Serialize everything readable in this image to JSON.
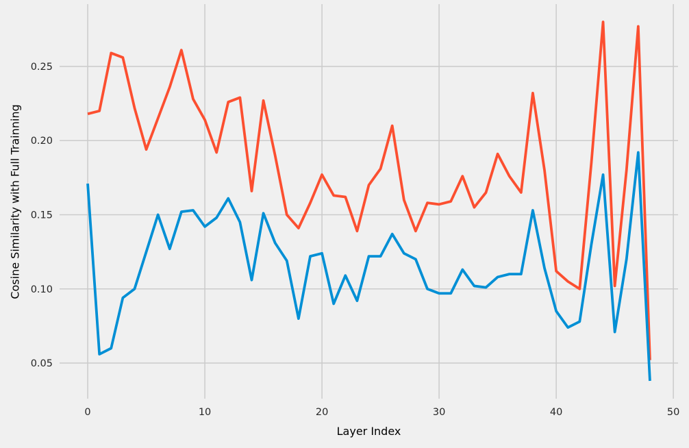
{
  "chart_data": {
    "type": "line",
    "title": "",
    "xlabel": "Layer Index",
    "ylabel": "Cosine Similarity with Full Trainning",
    "x": [
      0,
      1,
      2,
      3,
      4,
      5,
      6,
      7,
      8,
      9,
      10,
      11,
      12,
      13,
      14,
      15,
      16,
      17,
      18,
      19,
      20,
      21,
      22,
      23,
      24,
      25,
      26,
      27,
      28,
      29,
      30,
      31,
      32,
      33,
      34,
      35,
      36,
      37,
      38,
      39,
      40,
      41,
      42,
      43,
      44,
      45,
      46,
      47,
      48
    ],
    "series": [
      {
        "name": "red-series",
        "color": "#fc4f30",
        "values": [
          0.218,
          0.22,
          0.259,
          0.256,
          0.222,
          0.194,
          0.215,
          0.236,
          0.261,
          0.228,
          0.214,
          0.192,
          0.226,
          0.229,
          0.166,
          0.227,
          0.19,
          0.15,
          0.141,
          0.158,
          0.177,
          0.163,
          0.162,
          0.139,
          0.17,
          0.181,
          0.21,
          0.16,
          0.139,
          0.158,
          0.157,
          0.159,
          0.176,
          0.155,
          0.165,
          0.191,
          0.176,
          0.165,
          0.232,
          0.18,
          0.112,
          0.105,
          0.1,
          0.185,
          0.28,
          0.102,
          0.18,
          0.277,
          0.052
        ]
      },
      {
        "name": "blue-series",
        "color": "#008fd5",
        "values": [
          0.171,
          0.056,
          0.06,
          0.094,
          0.1,
          0.125,
          0.15,
          0.127,
          0.152,
          0.153,
          0.142,
          0.148,
          0.161,
          0.145,
          0.106,
          0.151,
          0.131,
          0.119,
          0.08,
          0.122,
          0.124,
          0.09,
          0.109,
          0.092,
          0.122,
          0.122,
          0.137,
          0.124,
          0.12,
          0.1,
          0.097,
          0.097,
          0.113,
          0.102,
          0.101,
          0.108,
          0.11,
          0.11,
          0.153,
          0.114,
          0.085,
          0.074,
          0.078,
          0.13,
          0.177,
          0.071,
          0.12,
          0.192,
          0.038
        ]
      }
    ],
    "xticks": [
      0,
      10,
      20,
      30,
      40,
      50
    ],
    "yticks": [
      0.05,
      0.1,
      0.15,
      0.2,
      0.25
    ],
    "xlim": [
      -2.4,
      50.4
    ],
    "ylim": [
      0.026,
      0.292
    ],
    "grid": true,
    "legend": "none",
    "background": "#f0f0f0",
    "grid_color": "#cbcbcb",
    "line_width": 3.8
  }
}
